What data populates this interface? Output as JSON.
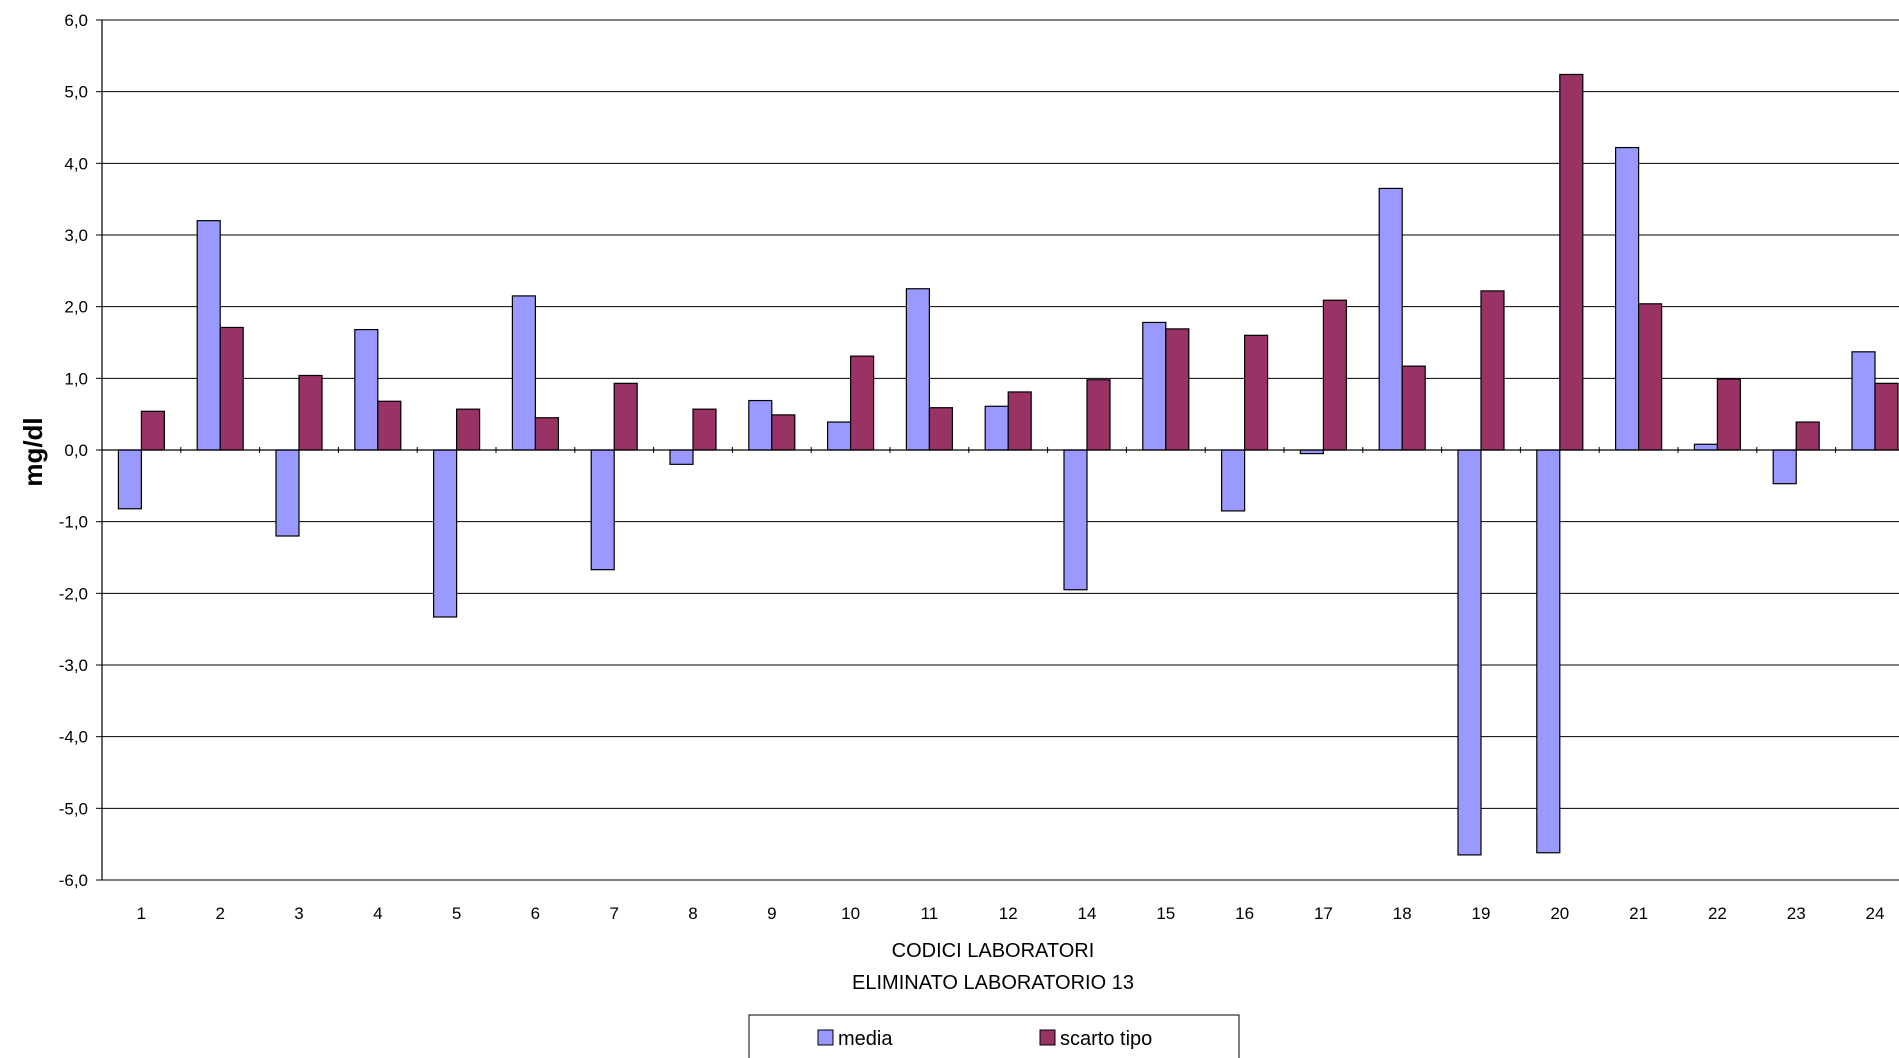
{
  "chart_data": {
    "type": "bar",
    "categories": [
      "1",
      "2",
      "3",
      "4",
      "5",
      "6",
      "7",
      "8",
      "9",
      "10",
      "11",
      "12",
      "14",
      "15",
      "16",
      "17",
      "18",
      "19",
      "20",
      "21",
      "22",
      "23",
      "24"
    ],
    "series": [
      {
        "name": "media",
        "color": "#9999FF",
        "values": [
          -0.82,
          3.2,
          -1.2,
          1.68,
          -2.33,
          2.15,
          -1.67,
          -0.2,
          0.69,
          0.39,
          2.25,
          0.61,
          -1.95,
          1.78,
          -0.85,
          -0.05,
          3.65,
          -5.65,
          -5.62,
          4.22,
          0.08,
          -0.47,
          1.37
        ]
      },
      {
        "name": "scarto tipo",
        "color": "#993366",
        "values": [
          0.54,
          1.71,
          1.04,
          0.68,
          0.57,
          0.45,
          0.93,
          0.57,
          0.49,
          1.31,
          0.59,
          0.81,
          0.98,
          1.69,
          1.6,
          2.09,
          1.17,
          2.22,
          5.24,
          2.04,
          0.99,
          0.39,
          0.93
        ]
      }
    ],
    "title": "",
    "xlabel": [
      "CODICI LABORATORI",
      "ELIMINATO LABORATORIO 13"
    ],
    "ylabel": "mg/dl",
    "ylim": [
      -6,
      6
    ],
    "yticks": [
      "-6,0",
      "-5,0",
      "-4,0",
      "-3,0",
      "-2,0",
      "-1,0",
      "0,0",
      "1,0",
      "2,0",
      "3,0",
      "4,0",
      "5,0",
      "6,0"
    ],
    "grid": true,
    "legend": "bottom"
  }
}
